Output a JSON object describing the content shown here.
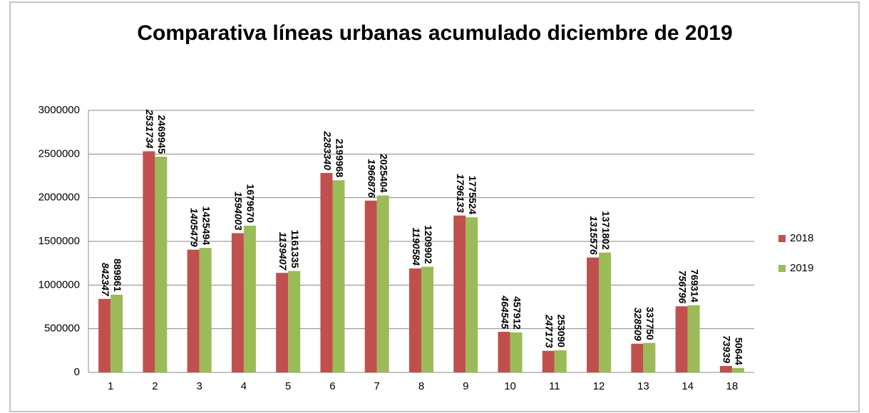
{
  "chart_data": {
    "type": "bar",
    "title": "Comparativa líneas urbanas acumulado diciembre de 2019",
    "categories": [
      "1",
      "2",
      "3",
      "4",
      "5",
      "6",
      "7",
      "8",
      "9",
      "10",
      "11",
      "12",
      "13",
      "14",
      "18"
    ],
    "series": [
      {
        "name": "2018",
        "color": "#c0504d",
        "values": [
          842347,
          2531734,
          1405479,
          1594003,
          1139407,
          2283340,
          1966876,
          1190584,
          1796133,
          464545,
          247173,
          1315576,
          328509,
          756796,
          73939
        ]
      },
      {
        "name": "2019",
        "color": "#9bbb59",
        "values": [
          889861,
          2469945,
          1425494,
          1679670,
          1161335,
          2199968,
          2025404,
          1209902,
          1775524,
          457912,
          253090,
          1371802,
          337750,
          769314,
          50644
        ]
      }
    ],
    "ylim": [
      0,
      3000000
    ],
    "yticks": [
      0,
      500000,
      1000000,
      1500000,
      2000000,
      2500000,
      3000000
    ],
    "grid": true,
    "legend": "right"
  }
}
